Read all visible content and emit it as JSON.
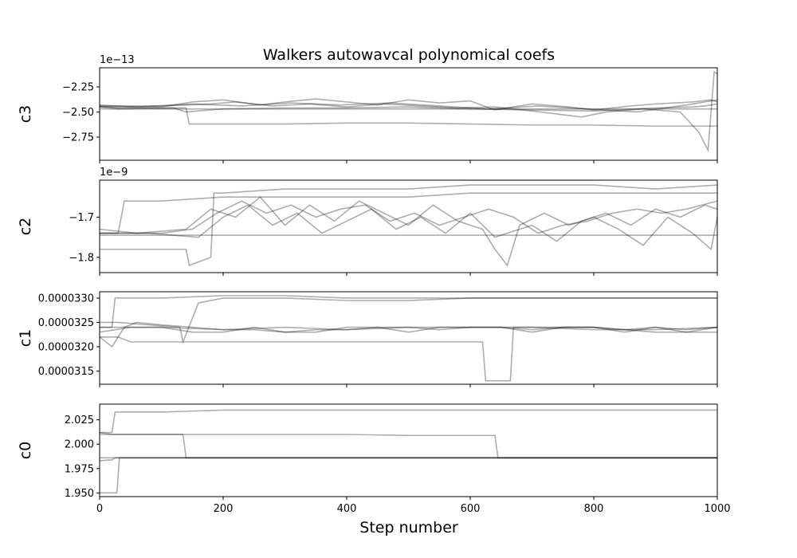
{
  "title": "Walkers autowavcal polynomical coefs",
  "xlabel": "Step number",
  "xticks": [
    0,
    200,
    400,
    600,
    800,
    1000
  ],
  "colors": {
    "walker": "#000000",
    "frame": "#000000",
    "background": "#ffffff"
  },
  "chart_data": [
    {
      "type": "line",
      "ylabel": "c3",
      "offset_label": "1e−13",
      "xlim": [
        0,
        1000
      ],
      "ylim": [
        -2.98,
        -2.06
      ],
      "yticks": [
        -2.25,
        -2.5,
        -2.75
      ],
      "ytick_labels": [
        "−2.25",
        "−2.50",
        "−2.75"
      ],
      "series": [
        {
          "x": [
            0,
            30,
            120,
            140,
            200,
            300,
            400,
            500,
            600,
            700,
            800,
            900,
            960,
            980,
            1000
          ],
          "values": [
            -2.45,
            -2.47,
            -2.46,
            -2.5,
            -2.47,
            -2.46,
            -2.46,
            -2.45,
            -2.47,
            -2.48,
            -2.49,
            -2.46,
            -2.45,
            -2.44,
            -2.42
          ]
        },
        {
          "x": [
            0,
            30,
            140,
            145,
            200,
            300,
            400,
            500,
            600,
            700,
            800,
            900,
            1000
          ],
          "values": [
            -2.44,
            -2.46,
            -2.46,
            -2.62,
            -2.62,
            -2.62,
            -2.61,
            -2.61,
            -2.62,
            -2.63,
            -2.63,
            -2.64,
            -2.64
          ]
        },
        {
          "x": [
            0,
            100,
            150,
            200,
            260,
            300,
            350,
            400,
            450,
            500,
            550,
            600,
            640,
            700,
            760,
            800,
            860,
            900,
            960,
            990,
            1000
          ],
          "values": [
            -2.45,
            -2.45,
            -2.4,
            -2.38,
            -2.43,
            -2.4,
            -2.37,
            -2.4,
            -2.43,
            -2.38,
            -2.41,
            -2.39,
            -2.48,
            -2.42,
            -2.45,
            -2.48,
            -2.44,
            -2.42,
            -2.4,
            -2.38,
            -2.4
          ]
        },
        {
          "x": [
            0,
            100,
            180,
            220,
            280,
            340,
            400,
            460,
            520,
            580,
            640,
            700,
            780,
            820,
            880,
            940,
            970,
            985,
            995,
            1000
          ],
          "values": [
            -2.44,
            -2.44,
            -2.42,
            -2.4,
            -2.44,
            -2.42,
            -2.45,
            -2.42,
            -2.44,
            -2.46,
            -2.45,
            -2.49,
            -2.55,
            -2.5,
            -2.47,
            -2.5,
            -2.7,
            -2.88,
            -2.1,
            -2.12
          ]
        },
        {
          "x": [
            0,
            100,
            200,
            300,
            400,
            500,
            600,
            700,
            800,
            900,
            1000
          ],
          "values": [
            -2.47,
            -2.47,
            -2.47,
            -2.47,
            -2.47,
            -2.47,
            -2.47,
            -2.47,
            -2.47,
            -2.47,
            -2.47
          ]
        },
        {
          "x": [
            0,
            60,
            150,
            230,
            310,
            390,
            470,
            550,
            630,
            710,
            790,
            870,
            950,
            1000
          ],
          "values": [
            -2.43,
            -2.45,
            -2.42,
            -2.44,
            -2.41,
            -2.43,
            -2.41,
            -2.44,
            -2.47,
            -2.44,
            -2.47,
            -2.5,
            -2.43,
            -2.38
          ]
        }
      ]
    },
    {
      "type": "line",
      "ylabel": "c2",
      "offset_label": "1e−9",
      "xlim": [
        0,
        1000
      ],
      "ylim": [
        -1.838,
        -1.608
      ],
      "yticks": [
        -1.7,
        -1.8
      ],
      "ytick_labels": [
        "−1.7",
        "−1.8"
      ],
      "series": [
        {
          "x": [
            0,
            30,
            40,
            100,
            200,
            300,
            400,
            500,
            600,
            700,
            800,
            900,
            1000
          ],
          "values": [
            -1.74,
            -1.74,
            -1.66,
            -1.66,
            -1.65,
            -1.65,
            -1.65,
            -1.65,
            -1.64,
            -1.64,
            -1.64,
            -1.64,
            -1.64
          ]
        },
        {
          "x": [
            0,
            30,
            140,
            145,
            180,
            185,
            200,
            300,
            400,
            500,
            600,
            700,
            800,
            900,
            1000
          ],
          "values": [
            -1.78,
            -1.78,
            -1.78,
            -1.82,
            -1.8,
            -1.64,
            -1.64,
            -1.63,
            -1.63,
            -1.63,
            -1.62,
            -1.62,
            -1.62,
            -1.63,
            -1.62
          ]
        },
        {
          "x": [
            0,
            100,
            200,
            300,
            400,
            500,
            600,
            700,
            800,
            900,
            1000
          ],
          "values": [
            -1.745,
            -1.745,
            -1.745,
            -1.745,
            -1.745,
            -1.745,
            -1.745,
            -1.745,
            -1.745,
            -1.745,
            -1.745
          ]
        },
        {
          "x": [
            0,
            60,
            140,
            180,
            220,
            260,
            300,
            340,
            380,
            420,
            460,
            500,
            540,
            580,
            620,
            640,
            660,
            680,
            720,
            760,
            800,
            840,
            880,
            920,
            960,
            990,
            1000
          ],
          "values": [
            -1.73,
            -1.74,
            -1.73,
            -1.68,
            -1.7,
            -1.65,
            -1.72,
            -1.67,
            -1.71,
            -1.66,
            -1.69,
            -1.72,
            -1.67,
            -1.71,
            -1.73,
            -1.78,
            -1.82,
            -1.72,
            -1.69,
            -1.72,
            -1.7,
            -1.73,
            -1.77,
            -1.7,
            -1.74,
            -1.78,
            -1.7
          ]
        },
        {
          "x": [
            0,
            80,
            160,
            200,
            240,
            280,
            320,
            360,
            400,
            440,
            480,
            520,
            560,
            600,
            640,
            700,
            740,
            780,
            820,
            860,
            900,
            940,
            980,
            1000
          ],
          "values": [
            -1.74,
            -1.74,
            -1.75,
            -1.7,
            -1.67,
            -1.72,
            -1.69,
            -1.74,
            -1.71,
            -1.68,
            -1.73,
            -1.7,
            -1.74,
            -1.69,
            -1.75,
            -1.72,
            -1.76,
            -1.71,
            -1.69,
            -1.72,
            -1.68,
            -1.7,
            -1.67,
            -1.68
          ]
        },
        {
          "x": [
            0,
            100,
            150,
            190,
            230,
            270,
            310,
            350,
            390,
            430,
            470,
            510,
            550,
            590,
            630,
            670,
            710,
            750,
            790,
            830,
            870,
            910,
            950,
            1000
          ],
          "values": [
            -1.74,
            -1.74,
            -1.73,
            -1.69,
            -1.66,
            -1.69,
            -1.67,
            -1.7,
            -1.68,
            -1.67,
            -1.71,
            -1.69,
            -1.72,
            -1.7,
            -1.68,
            -1.7,
            -1.74,
            -1.72,
            -1.71,
            -1.69,
            -1.68,
            -1.69,
            -1.68,
            -1.66
          ]
        }
      ]
    },
    {
      "type": "line",
      "ylabel": "c1",
      "offset_label": "",
      "xlim": [
        0,
        1000
      ],
      "ylim": [
        3.123e-05,
        3.313e-05
      ],
      "yticks": [
        3.15e-05,
        3.2e-05,
        3.25e-05,
        3.3e-05
      ],
      "ytick_labels": [
        "0.0000315",
        "0.0000320",
        "0.0000325",
        "0.0000330"
      ],
      "series": [
        {
          "x": [
            0,
            20,
            25,
            100,
            200,
            300,
            400,
            500,
            600,
            700,
            800,
            900,
            1000
          ],
          "values": [
            3.24e-05,
            3.24e-05,
            3.3e-05,
            3.3e-05,
            3.305e-05,
            3.305e-05,
            3.3e-05,
            3.3e-05,
            3.3e-05,
            3.3e-05,
            3.3e-05,
            3.3e-05,
            3.3e-05
          ]
        },
        {
          "x": [
            0,
            30,
            130,
            135,
            160,
            200,
            300,
            400,
            500,
            600,
            700,
            800,
            900,
            1000
          ],
          "values": [
            3.25e-05,
            3.25e-05,
            3.24e-05,
            3.21e-05,
            3.29e-05,
            3.3e-05,
            3.3e-05,
            3.295e-05,
            3.295e-05,
            3.3e-05,
            3.3e-05,
            3.3e-05,
            3.3e-05,
            3.3e-05
          ]
        },
        {
          "x": [
            0,
            30,
            50,
            100,
            140,
            145,
            200,
            300,
            400,
            500,
            600,
            620,
            625,
            665,
            670,
            700,
            800,
            900,
            1000
          ],
          "values": [
            3.22e-05,
            3.22e-05,
            3.21e-05,
            3.21e-05,
            3.21e-05,
            3.21e-05,
            3.21e-05,
            3.21e-05,
            3.21e-05,
            3.21e-05,
            3.21e-05,
            3.21e-05,
            3.13e-05,
            3.13e-05,
            3.24e-05,
            3.24e-05,
            3.24e-05,
            3.23e-05,
            3.23e-05
          ]
        },
        {
          "x": [
            0,
            20,
            40,
            60,
            100,
            150,
            200,
            250,
            300,
            350,
            400,
            450,
            500,
            550,
            600,
            650,
            700,
            750,
            800,
            850,
            900,
            950,
            1000
          ],
          "values": [
            3.22e-05,
            3.2e-05,
            3.24e-05,
            3.25e-05,
            3.245e-05,
            3.24e-05,
            3.235e-05,
            3.235e-05,
            3.23e-05,
            3.235e-05,
            3.235e-05,
            3.24e-05,
            3.24e-05,
            3.235e-05,
            3.24e-05,
            3.24e-05,
            3.235e-05,
            3.24e-05,
            3.24e-05,
            3.235e-05,
            3.24e-05,
            3.235e-05,
            3.24e-05
          ]
        },
        {
          "x": [
            0,
            50,
            100,
            150,
            200,
            250,
            300,
            350,
            400,
            450,
            500,
            550,
            600,
            650,
            700,
            750,
            800,
            850,
            900,
            950,
            1000
          ],
          "values": [
            3.23e-05,
            3.24e-05,
            3.24e-05,
            3.23e-05,
            3.23e-05,
            3.24e-05,
            3.23e-05,
            3.23e-05,
            3.24e-05,
            3.24e-05,
            3.23e-05,
            3.24e-05,
            3.24e-05,
            3.24e-05,
            3.23e-05,
            3.24e-05,
            3.24e-05,
            3.23e-05,
            3.24e-05,
            3.23e-05,
            3.24e-05
          ]
        },
        {
          "x": [
            0,
            30,
            50,
            100,
            200,
            300,
            400,
            500,
            600,
            700,
            800,
            900,
            1000
          ],
          "values": [
            3.24e-05,
            3.24e-05,
            3.24e-05,
            3.24e-05,
            3.235e-05,
            3.24e-05,
            3.235e-05,
            3.24e-05,
            3.24e-05,
            3.24e-05,
            3.235e-05,
            3.235e-05,
            3.24e-05
          ]
        }
      ]
    },
    {
      "type": "line",
      "ylabel": "c0",
      "offset_label": "",
      "xlim": [
        0,
        1000
      ],
      "ylim": [
        1.9462,
        2.0411
      ],
      "yticks": [
        1.95,
        1.975,
        2.0,
        2.025
      ],
      "ytick_labels": [
        "1.950",
        "1.975",
        "2.000",
        "2.025"
      ],
      "series": [
        {
          "x": [
            0,
            20,
            25,
            100,
            200,
            300,
            400,
            500,
            600,
            700,
            800,
            900,
            1000
          ],
          "values": [
            2.012,
            2.012,
            2.033,
            2.033,
            2.035,
            2.035,
            2.035,
            2.035,
            2.035,
            2.035,
            2.035,
            2.035,
            2.035
          ]
        },
        {
          "x": [
            0,
            20,
            100,
            135,
            140,
            200,
            300,
            400,
            500,
            600,
            700,
            800,
            900,
            1000
          ],
          "values": [
            2.012,
            2.01,
            2.01,
            2.01,
            1.986,
            1.986,
            1.986,
            1.986,
            1.986,
            1.986,
            1.986,
            1.986,
            1.986,
            1.986
          ]
        },
        {
          "x": [
            0,
            100,
            200,
            300,
            400,
            500,
            600,
            640,
            645,
            700,
            800,
            900,
            1000
          ],
          "values": [
            2.01,
            2.01,
            2.01,
            2.01,
            2.01,
            2.009,
            2.009,
            2.009,
            1.986,
            1.986,
            1.986,
            1.986,
            1.986
          ]
        },
        {
          "x": [
            0,
            28,
            32,
            100,
            200,
            300,
            400,
            500,
            600,
            700,
            800,
            900,
            1000
          ],
          "values": [
            1.95,
            1.95,
            1.986,
            1.986,
            1.986,
            1.986,
            1.986,
            1.986,
            1.986,
            1.986,
            1.986,
            1.986,
            1.986
          ]
        },
        {
          "x": [
            0,
            20,
            25,
            100,
            200,
            300,
            400,
            500,
            600,
            700,
            800,
            900,
            1000
          ],
          "values": [
            1.983,
            1.984,
            1.986,
            1.986,
            1.986,
            1.986,
            1.986,
            1.986,
            1.986,
            1.986,
            1.986,
            1.986,
            1.986
          ]
        },
        {
          "x": [
            0,
            100,
            200,
            300,
            400,
            500,
            600,
            700,
            800,
            900,
            1000
          ],
          "values": [
            1.986,
            1.986,
            1.986,
            1.986,
            1.986,
            1.986,
            1.986,
            1.986,
            1.986,
            1.986,
            1.986
          ]
        }
      ]
    }
  ]
}
